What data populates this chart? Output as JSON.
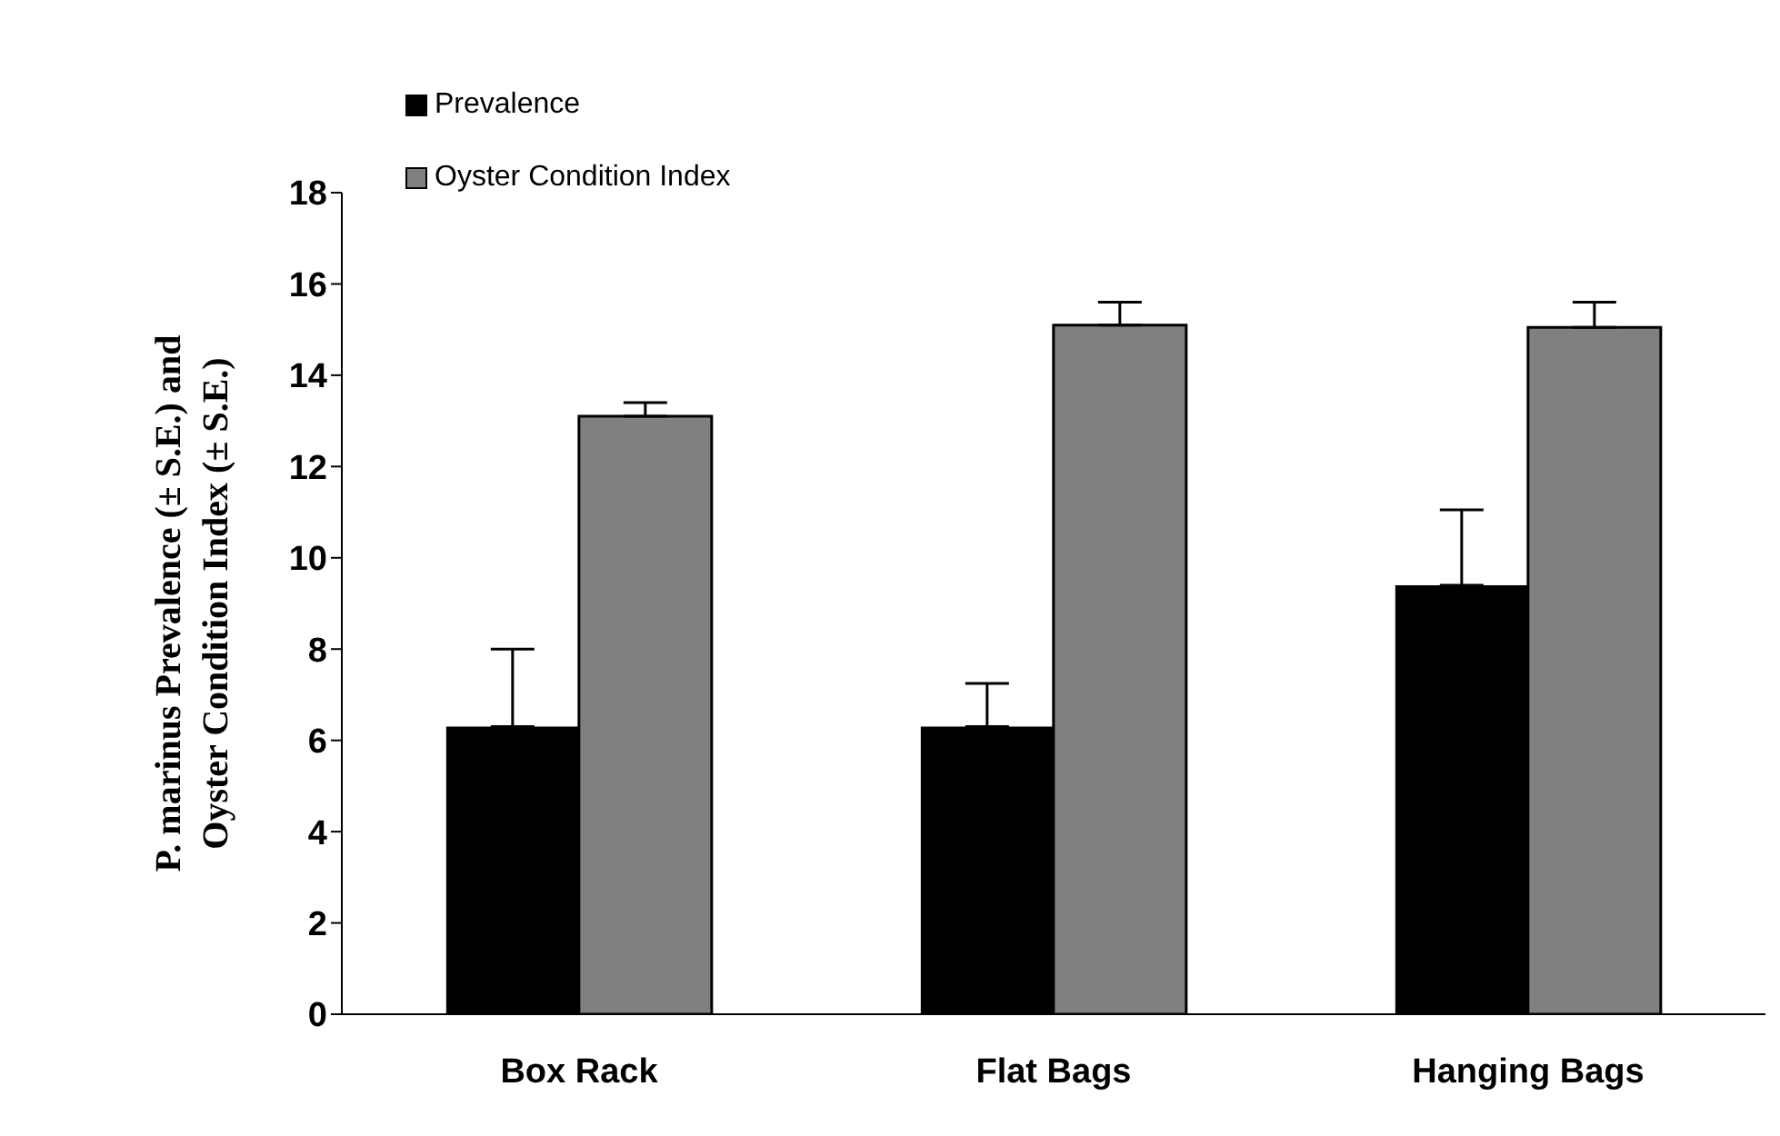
{
  "chart_data": {
    "type": "bar",
    "ylabel": "P. marinus Prevalence (± S.E.) and Oyster Condition Index (± S.E.)",
    "categories": [
      "Box Rack",
      "Flat Bags",
      "Hanging Bags"
    ],
    "series": [
      {
        "name": "Prevalence",
        "color": "#000000",
        "values": [
          6.3,
          6.3,
          9.4
        ],
        "errors": [
          [
            6.3,
            8.0
          ],
          [
            6.3,
            7.25
          ],
          [
            9.4,
            11.05
          ]
        ]
      },
      {
        "name": "Oyster Condition Index",
        "color": "#808080",
        "values": [
          13.1,
          15.1,
          15.05
        ],
        "errors": [
          [
            13.1,
            13.4
          ],
          [
            15.1,
            15.6
          ],
          [
            15.05,
            15.6
          ]
        ]
      }
    ],
    "ylim": [
      0,
      18
    ],
    "yticks": [
      0,
      2,
      4,
      6,
      8,
      10,
      12,
      14,
      16,
      18
    ],
    "legend": "top left",
    "grid": false
  }
}
